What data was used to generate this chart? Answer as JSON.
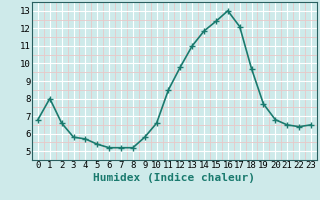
{
  "x": [
    0,
    1,
    2,
    3,
    4,
    5,
    6,
    7,
    8,
    9,
    10,
    11,
    12,
    13,
    14,
    15,
    16,
    17,
    18,
    19,
    20,
    21,
    22,
    23
  ],
  "y": [
    6.8,
    8.0,
    6.6,
    5.8,
    5.7,
    5.4,
    5.2,
    5.2,
    5.2,
    5.8,
    6.6,
    8.5,
    9.8,
    11.0,
    11.85,
    12.4,
    13.0,
    12.1,
    9.7,
    7.7,
    6.8,
    6.5,
    6.4,
    6.5
  ],
  "line_color": "#1a7a6e",
  "marker": "+",
  "marker_color": "#1a7a6e",
  "marker_size": 4,
  "xlabel": "Humidex (Indice chaleur)",
  "xlim": [
    -0.5,
    23.5
  ],
  "ylim": [
    4.8,
    13.5
  ],
  "yticks": [
    5,
    6,
    7,
    8,
    9,
    10,
    11,
    12,
    13
  ],
  "xticks": [
    0,
    1,
    2,
    3,
    4,
    5,
    6,
    7,
    8,
    9,
    10,
    11,
    12,
    13,
    14,
    15,
    16,
    17,
    18,
    19,
    20,
    21,
    22,
    23
  ],
  "bg_color": "#ceeaea",
  "grid_color_major": "#ffffff",
  "grid_color_minor": "#e8c8c8",
  "xlabel_fontsize": 8,
  "tick_fontsize": 6.5,
  "line_width": 1.2
}
